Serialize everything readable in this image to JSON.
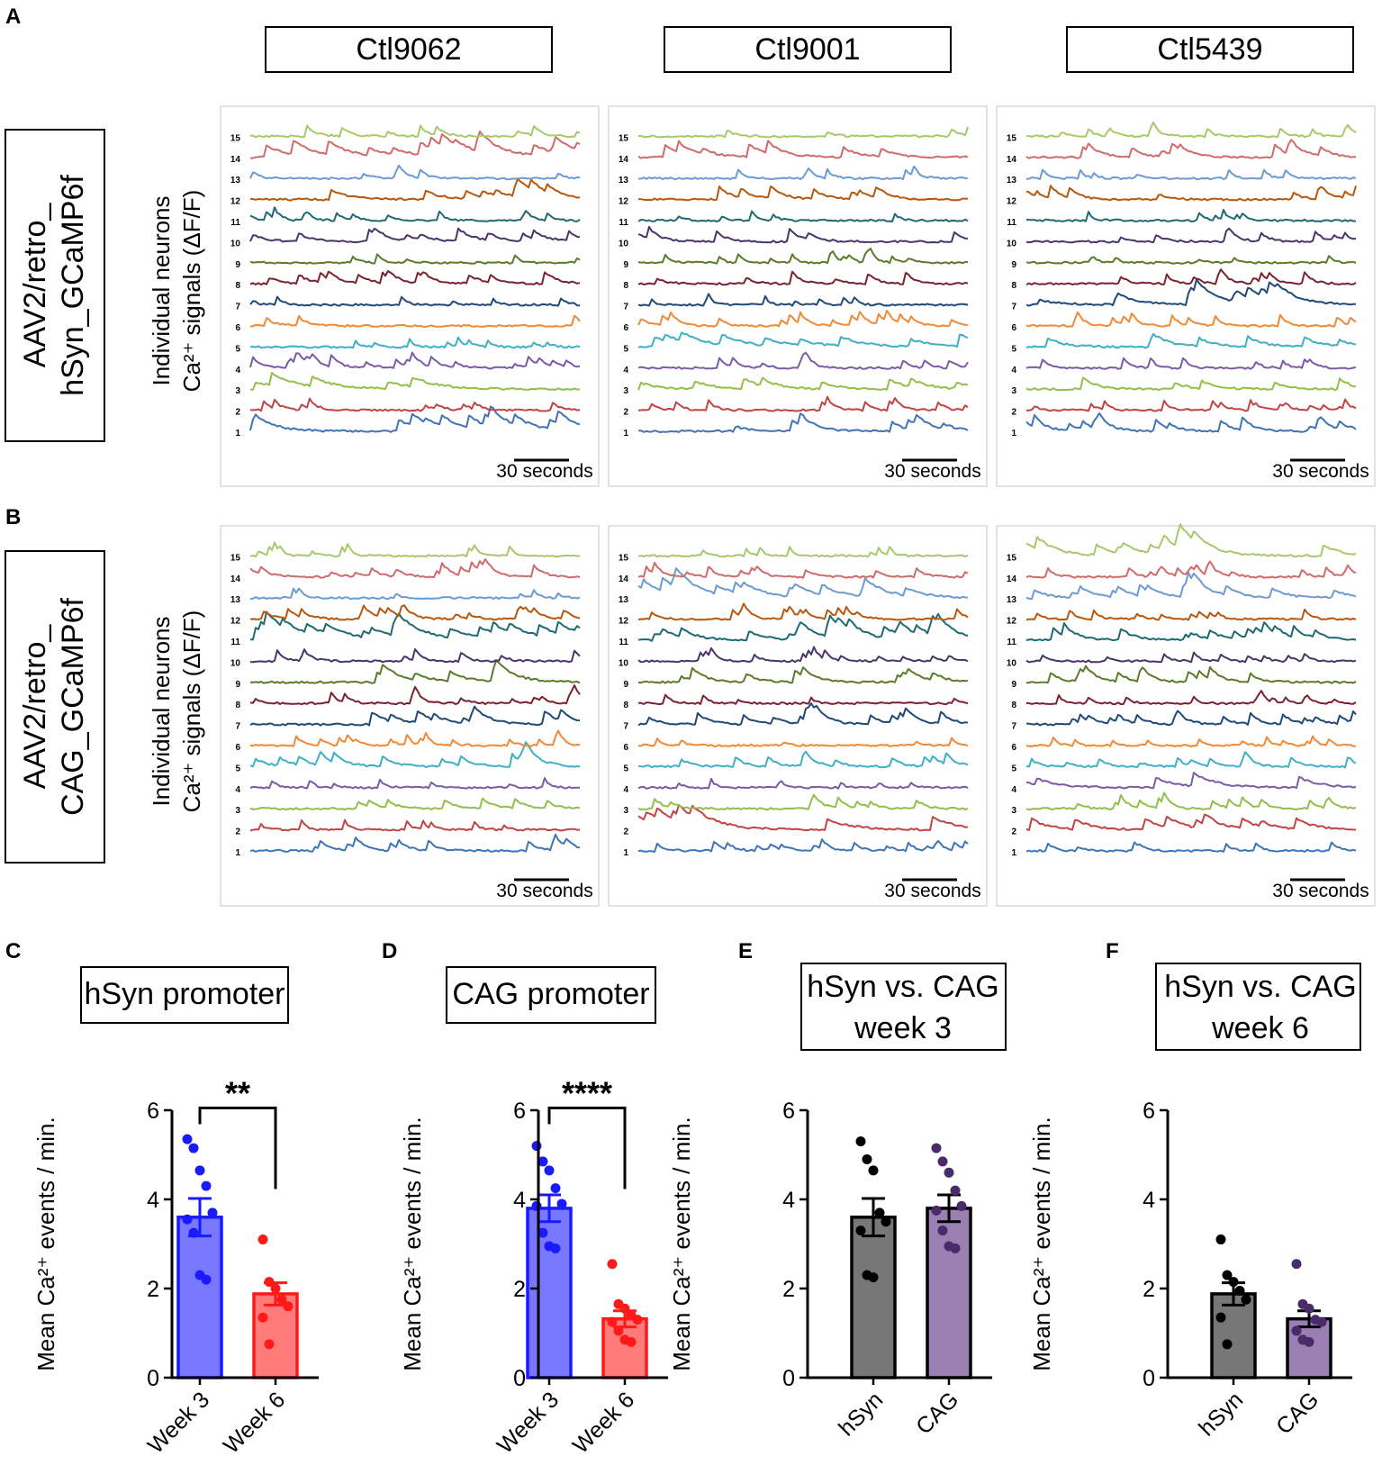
{
  "panel_letters": {
    "A": "A",
    "B": "B",
    "C": "C",
    "D": "D",
    "E": "E",
    "F": "F"
  },
  "row_A": {
    "vector_line1": "AAV2/retro_",
    "vector_line2": "hSyn_GCaMP6f",
    "ylabel_line1": "Individual neurons",
    "ylabel_line2": "Ca²⁺ signals (ΔF/F)"
  },
  "row_B": {
    "vector_line1": "AAV2/retro_",
    "vector_line2": "CAG_GCaMP6f",
    "ylabel_line1": "Individual neurons",
    "ylabel_line2": "Ca²⁺ signals (ΔF/F)"
  },
  "cell_lines": [
    "Ctl9062",
    "Ctl9001",
    "Ctl5439"
  ],
  "scale_bar_label": "30 seconds",
  "neuron_numbers": [
    "1",
    "2",
    "3",
    "4",
    "5",
    "6",
    "7",
    "8",
    "9",
    "10",
    "11",
    "12",
    "13",
    "14",
    "15"
  ],
  "trace_colors": [
    "#3f74b5",
    "#c14444",
    "#94be4c",
    "#7b5ba6",
    "#3fb0c4",
    "#f08a36",
    "#1f4a78",
    "#7a2230",
    "#5b7a2a",
    "#4a3468",
    "#1e6a70",
    "#b8570e",
    "#6c9ad2",
    "#cf6b6b",
    "#a8c86c"
  ],
  "chart_data": [
    {
      "panel": "C",
      "type": "bar",
      "title": "hSyn promoter",
      "categories": [
        "Week 3",
        "Week 6"
      ],
      "values": [
        3.6,
        1.88
      ],
      "sem": [
        0.42,
        0.25
      ],
      "points": [
        [
          5.35,
          5.15,
          4.65,
          4.3,
          3.7,
          3.55,
          3.25,
          2.3,
          2.2
        ],
        [
          3.1,
          2.15,
          2.0,
          1.75,
          1.6,
          1.35,
          0.75
        ]
      ],
      "colors": [
        "#7777ff",
        "#ff7b7b"
      ],
      "edge_colors": [
        "#1a1aff",
        "#ff1a1a"
      ],
      "point_colors": [
        "#1a1aff",
        "#ff1a1a"
      ],
      "significance": "**",
      "ylabel": "Mean Ca²⁺ events / min.",
      "ylim": [
        0,
        6
      ],
      "yticks": [
        "0",
        "2",
        "4",
        "6"
      ]
    },
    {
      "panel": "D",
      "type": "bar",
      "title": "CAG promoter",
      "categories": [
        "Week 3",
        "Week 6"
      ],
      "values": [
        3.8,
        1.32
      ],
      "sem": [
        0.3,
        0.18
      ],
      "points": [
        [
          5.2,
          4.85,
          4.65,
          4.25,
          3.9,
          3.85,
          3.25,
          2.95,
          2.9
        ],
        [
          2.55,
          1.65,
          1.55,
          1.4,
          1.3,
          1.25,
          1.05,
          0.85,
          0.8
        ]
      ],
      "colors": [
        "#7777ff",
        "#ff7b7b"
      ],
      "edge_colors": [
        "#1a1aff",
        "#ff1a1a"
      ],
      "point_colors": [
        "#1a1aff",
        "#ff1a1a"
      ],
      "significance": "****",
      "ylabel": "Mean Ca²⁺ events / min.",
      "ylim": [
        0,
        6
      ],
      "yticks": [
        "0",
        "2",
        "4",
        "6"
      ]
    },
    {
      "panel": "E",
      "type": "bar",
      "title": "hSyn vs. CAG",
      "title_line2": "week 3",
      "categories": [
        "hSyn",
        "CAG"
      ],
      "values": [
        3.6,
        3.8
      ],
      "sem": [
        0.42,
        0.3
      ],
      "points": [
        [
          5.3,
          4.9,
          4.65,
          3.7,
          3.5,
          3.3,
          2.3,
          2.25
        ],
        [
          5.15,
          4.85,
          4.6,
          4.2,
          3.85,
          3.75,
          3.3,
          2.95,
          2.9
        ]
      ],
      "colors": [
        "#777777",
        "#9a7fb3"
      ],
      "edge_colors": [
        "#000000",
        "#000000"
      ],
      "point_colors": [
        "#000000",
        "#4a2a6a"
      ],
      "significance": "",
      "ylabel": "Mean Ca²⁺ events / min.",
      "ylim": [
        0,
        6
      ],
      "yticks": [
        "0",
        "2",
        "4",
        "6"
      ]
    },
    {
      "panel": "F",
      "type": "bar",
      "title": "hSyn vs. CAG",
      "title_line2": "week 6",
      "categories": [
        "hSyn",
        "CAG"
      ],
      "values": [
        1.88,
        1.32
      ],
      "sem": [
        0.25,
        0.18
      ],
      "points": [
        [
          3.1,
          2.3,
          2.15,
          1.95,
          1.75,
          1.35,
          0.75
        ],
        [
          2.55,
          1.65,
          1.55,
          1.3,
          1.25,
          1.05,
          0.85,
          0.8
        ]
      ],
      "colors": [
        "#777777",
        "#9a7fb3"
      ],
      "edge_colors": [
        "#000000",
        "#000000"
      ],
      "point_colors": [
        "#000000",
        "#4a2a6a"
      ],
      "significance": "",
      "ylabel": "Mean Ca²⁺ events / min.",
      "ylim": [
        0,
        6
      ],
      "yticks": [
        "0",
        "2",
        "4",
        "6"
      ]
    }
  ]
}
